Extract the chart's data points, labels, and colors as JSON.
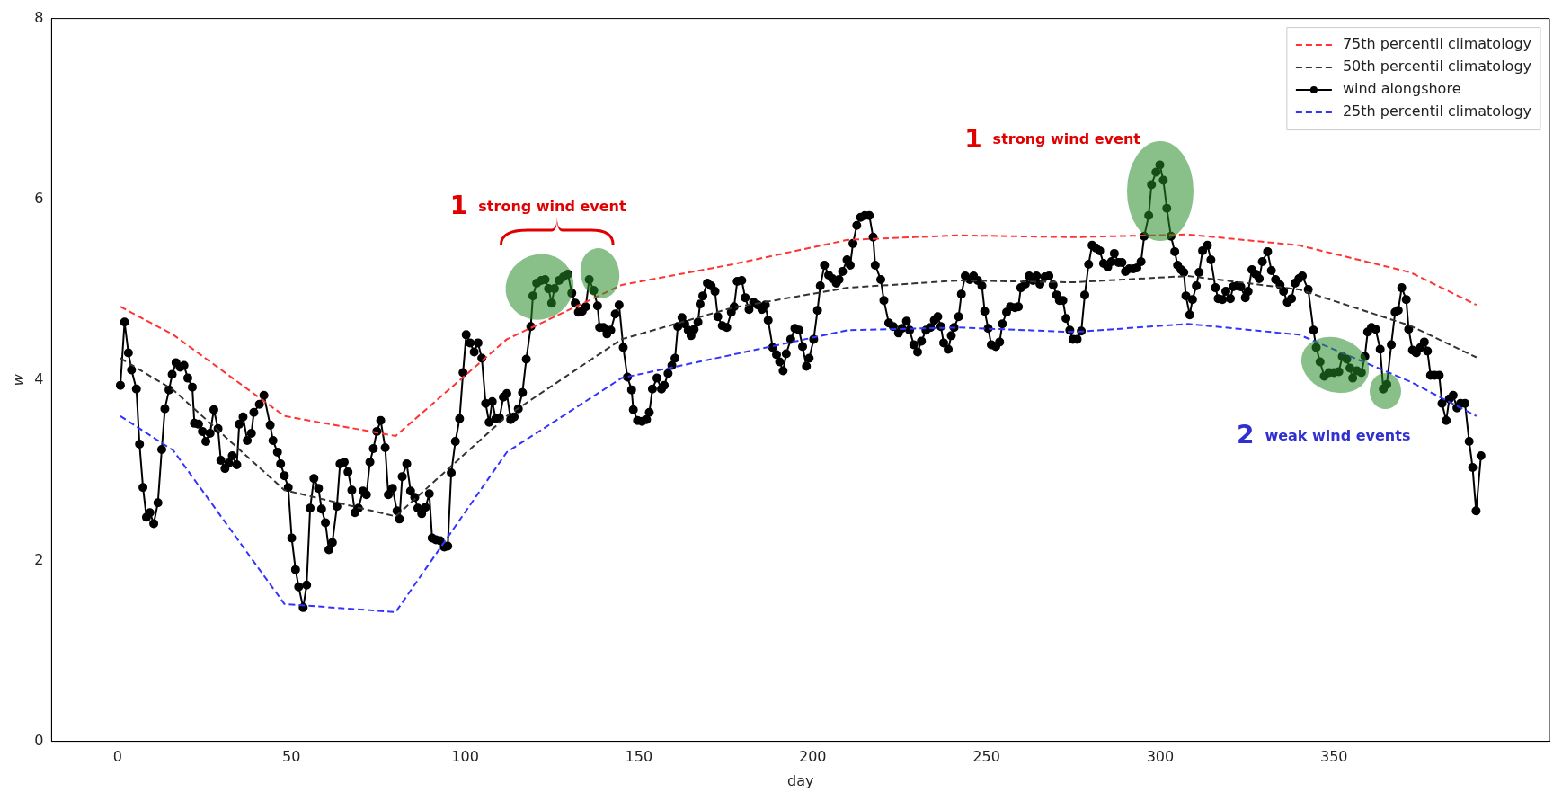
{
  "chart_data": {
    "type": "line",
    "xlabel": "day",
    "ylabel": "w",
    "xlim": [
      -19,
      412
    ],
    "xticks": [
      0,
      50,
      100,
      150,
      200,
      250,
      300,
      350
    ],
    "ylim": [
      0,
      8
    ],
    "yticks": [
      0,
      2,
      4,
      6,
      8
    ],
    "legend": "top right",
    "grid": false,
    "series": [
      {
        "name": "75th percentil climatology",
        "color": "#ff3333",
        "line_style": "dashed",
        "marker": "none",
        "x": [
          0.8,
          16,
          48,
          80,
          112,
          145,
          177,
          210,
          242,
          275,
          308,
          340,
          372,
          391
        ],
        "values": [
          4.81,
          4.5,
          3.6,
          3.38,
          4.45,
          5.05,
          5.28,
          5.55,
          5.6,
          5.58,
          5.61,
          5.49,
          5.19,
          4.83
        ]
      },
      {
        "name": "50th percentil climatology",
        "color": "#333333",
        "line_style": "dashed",
        "marker": "none",
        "x": [
          0.8,
          16,
          48,
          80,
          112,
          145,
          177,
          210,
          242,
          275,
          308,
          340,
          372,
          391
        ],
        "values": [
          4.24,
          3.89,
          2.78,
          2.49,
          3.6,
          4.45,
          4.8,
          5.02,
          5.1,
          5.08,
          5.15,
          5.0,
          4.6,
          4.25
        ]
      },
      {
        "name": "wind alongshore",
        "color": "#000000",
        "line_style": "solid",
        "marker": "circle",
        "x": [
          0.8,
          2.0,
          3.1,
          4.0,
          5.4,
          6.3,
          7.3,
          8.3,
          9.3,
          10.4,
          11.6,
          12.7,
          13.6,
          14.8,
          15.7,
          16.8,
          18.0,
          19.1,
          20.2,
          21.5,
          22.1,
          23.3,
          24.4,
          25.4,
          26.6,
          27.7,
          28.9,
          29.7,
          30.9,
          32.0,
          33.0,
          34.3,
          35.0,
          36.1,
          37.3,
          38.5,
          39.2,
          40.8,
          42.1,
          43.9,
          44.7,
          46.0,
          46.9,
          48.0,
          49.1,
          50.1,
          51.2,
          52.1,
          53.4,
          54.4,
          55.4,
          56.5,
          57.8,
          58.7,
          59.8,
          60.8,
          61.8,
          63.1,
          64.0,
          65.2,
          66.3,
          67.4,
          68.3,
          69.3,
          70.6,
          71.6,
          72.6,
          73.6,
          74.6,
          75.7,
          77.0,
          77.9,
          79.1,
          80.4,
          81.1,
          81.9,
          83.2,
          84.3,
          85.5,
          86.4,
          87.5,
          88.6,
          89.7,
          90.5,
          91.6,
          92.8,
          94.0,
          95.0,
          96.0,
          97.2,
          98.4,
          99.4,
          100.3,
          101.4,
          102.6,
          103.7,
          104.8,
          105.9,
          106.9,
          107.8,
          108.8,
          109.9,
          111.0,
          112.0,
          113.1,
          114.1,
          115.3,
          116.5,
          117.6,
          118.9,
          119.5,
          120.6,
          121.9,
          123.0,
          124.0,
          124.9,
          125.7,
          127.0,
          128.3,
          129.6,
          130.7,
          131.7,
          132.6,
          133.7,
          134.7,
          135.7,
          137.0,
          138.1,
          138.7,
          139.8,
          140.8,
          141.9,
          143.2,
          144.3,
          145.5,
          146.7,
          147.9,
          148.4,
          149.6,
          150.9,
          152.2,
          153.0,
          153.9,
          155.2,
          156.5,
          157.3,
          158.4,
          159.5,
          160.4,
          161.2,
          162.4,
          163.2,
          164.2,
          165.0,
          165.9,
          167.0,
          167.6,
          168.4,
          169.7,
          170.8,
          171.9,
          172.7,
          174.0,
          175.3,
          176.6,
          177.4,
          178.3,
          179.6,
          180.6,
          181.7,
          183.0,
          184.2,
          185.4,
          186.4,
          187.2,
          188.5,
          189.6,
          190.5,
          191.5,
          192.4,
          193.7,
          194.9,
          196.1,
          197.1,
          198.2,
          199.0,
          200.3,
          201.4,
          202.2,
          203.4,
          204.6,
          205.7,
          206.8,
          207.6,
          208.6,
          209.9,
          210.8,
          211.6,
          212.7,
          213.8,
          215.0,
          216.3,
          217.4,
          218.0,
          219.6,
          220.5,
          221.9,
          223.2,
          224.7,
          225.7,
          227.0,
          227.9,
          229.1,
          230.2,
          231.3,
          232.6,
          233.9,
          235.0,
          236.0,
          236.9,
          237.7,
          239.0,
          239.9,
          240.7,
          242.0,
          242.8,
          243.9,
          245.2,
          246.3,
          247.5,
          248.7,
          249.5,
          250.5,
          251.4,
          252.7,
          253.8,
          254.6,
          255.8,
          256.9,
          258.2,
          259.2,
          259.9,
          261.2,
          262.3,
          263.4,
          264.4,
          265.4,
          266.8,
          268.0,
          269.2,
          270.2,
          271.0,
          272.0,
          272.9,
          274.0,
          274.9,
          276.1,
          277.3,
          278.3,
          279.4,
          280.4,
          281.5,
          282.6,
          283.7,
          284.9,
          286.0,
          286.8,
          288.0,
          289.0,
          290.0,
          291.1,
          292.3,
          293.3,
          294.5,
          295.4,
          296.7,
          297.5,
          298.8,
          299.9,
          300.9,
          301.9,
          303.1,
          304.2,
          305.0,
          306.0,
          306.8,
          307.4,
          308.5,
          309.3,
          310.4,
          311.2,
          312.2,
          313.6,
          314.6,
          315.9,
          316.7,
          317.9,
          318.9,
          320.2,
          321.0,
          322.1,
          323.2,
          324.5,
          325.3,
          326.4,
          327.5,
          328.5,
          329.4,
          330.9,
          332.0,
          333.2,
          334.5,
          335.5,
          336.6,
          337.8,
          338.8,
          339.9,
          340.9,
          342.6,
          344.1,
          344.9,
          346.0,
          347.2,
          348.6,
          350.0,
          351.4,
          352.4,
          353.7,
          354.6,
          355.4,
          356.6,
          357.9,
          358.9,
          359.7,
          360.8,
          362.0,
          363.3,
          364.2,
          365.2,
          366.5,
          367.6,
          368.5,
          369.5,
          370.8,
          371.5,
          372.6,
          373.7,
          374.9,
          376.0,
          376.9,
          377.8,
          379.0,
          380.3,
          381.1,
          382.3,
          383.2,
          384.3,
          385.4,
          386.4,
          387.7,
          388.9,
          389.9,
          390.9,
          392.3
        ],
        "values": [
          3.94,
          4.64,
          4.3,
          4.11,
          3.9,
          3.29,
          2.81,
          2.48,
          2.53,
          2.41,
          2.64,
          3.23,
          3.68,
          3.89,
          4.06,
          4.19,
          4.14,
          4.16,
          4.02,
          3.92,
          3.52,
          3.51,
          3.43,
          3.32,
          3.41,
          3.67,
          3.46,
          3.11,
          3.02,
          3.08,
          3.16,
          3.06,
          3.51,
          3.59,
          3.33,
          3.41,
          3.64,
          3.73,
          3.83,
          3.5,
          3.33,
          3.2,
          3.07,
          2.94,
          2.81,
          2.25,
          1.9,
          1.71,
          1.48,
          1.73,
          2.58,
          2.91,
          2.8,
          2.57,
          2.42,
          2.12,
          2.2,
          2.6,
          3.07,
          3.09,
          2.98,
          2.78,
          2.53,
          2.58,
          2.77,
          2.73,
          3.09,
          3.24,
          3.43,
          3.55,
          3.25,
          2.73,
          2.8,
          2.55,
          2.46,
          2.93,
          3.07,
          2.77,
          2.7,
          2.58,
          2.52,
          2.59,
          2.74,
          2.25,
          2.23,
          2.22,
          2.15,
          2.16,
          2.97,
          3.32,
          3.57,
          4.08,
          4.5,
          4.41,
          4.31,
          4.41,
          4.24,
          3.74,
          3.53,
          3.76,
          3.57,
          3.58,
          3.81,
          3.85,
          3.56,
          3.59,
          3.68,
          3.86,
          4.23,
          4.59,
          4.93,
          5.07,
          5.1,
          5.11,
          5.01,
          4.85,
          5.01,
          5.1,
          5.14,
          5.17,
          4.96,
          4.85,
          4.75,
          4.76,
          4.81,
          5.11,
          4.99,
          4.82,
          4.58,
          4.58,
          4.51,
          4.55,
          4.73,
          4.83,
          4.36,
          4.03,
          3.89,
          3.67,
          3.55,
          3.54,
          3.56,
          3.64,
          3.9,
          4.02,
          3.9,
          3.94,
          4.07,
          4.16,
          4.24,
          4.59,
          4.69,
          4.62,
          4.55,
          4.49,
          4.56,
          4.64,
          4.84,
          4.93,
          5.07,
          5.04,
          4.98,
          4.7,
          4.6,
          4.58,
          4.75,
          4.81,
          5.09,
          5.1,
          4.91,
          4.78,
          4.86,
          4.83,
          4.78,
          4.83,
          4.66,
          4.36,
          4.28,
          4.2,
          4.1,
          4.29,
          4.45,
          4.57,
          4.55,
          4.37,
          4.15,
          4.24,
          4.45,
          4.77,
          5.04,
          5.27,
          5.16,
          5.12,
          5.07,
          5.11,
          5.2,
          5.33,
          5.27,
          5.51,
          5.71,
          5.8,
          5.82,
          5.82,
          5.58,
          5.27,
          5.11,
          4.88,
          4.63,
          4.59,
          4.52,
          4.57,
          4.65,
          4.55,
          4.39,
          4.31,
          4.43,
          4.55,
          4.58,
          4.66,
          4.7,
          4.59,
          4.41,
          4.34,
          4.49,
          4.58,
          4.7,
          4.95,
          5.15,
          5.11,
          5.15,
          5.1,
          5.04,
          4.76,
          4.57,
          4.39,
          4.37,
          4.42,
          4.62,
          4.75,
          4.81,
          4.8,
          4.81,
          5.02,
          5.06,
          5.15,
          5.1,
          5.15,
          5.06,
          5.14,
          5.15,
          5.05,
          4.94,
          4.88,
          4.88,
          4.68,
          4.55,
          4.45,
          4.45,
          4.54,
          4.94,
          5.28,
          5.49,
          5.46,
          5.43,
          5.29,
          5.25,
          5.31,
          5.4,
          5.3,
          5.3,
          5.2,
          5.23,
          5.23,
          5.24,
          5.31,
          5.59,
          5.82,
          6.16,
          6.3,
          6.38,
          6.21,
          5.9,
          5.59,
          5.42,
          5.27,
          5.22,
          5.19,
          4.93,
          4.72,
          4.89,
          5.04,
          5.19,
          5.43,
          5.49,
          5.33,
          5.02,
          4.9,
          4.89,
          4.98,
          4.9,
          5.03,
          5.04,
          5.03,
          4.91,
          4.98,
          5.22,
          5.17,
          5.12,
          5.31,
          5.42,
          5.21,
          5.11,
          5.05,
          4.98,
          4.86,
          4.9,
          5.07,
          5.12,
          5.15,
          5.0,
          4.55,
          4.36,
          4.2,
          4.04,
          4.08,
          4.08,
          4.09,
          4.26,
          4.23,
          4.13,
          4.02,
          4.1,
          4.08,
          4.26,
          4.53,
          4.58,
          4.56,
          4.34,
          3.9,
          3.95,
          4.39,
          4.75,
          4.77,
          5.02,
          4.89,
          4.56,
          4.33,
          4.3,
          4.36,
          4.42,
          4.32,
          4.05,
          4.05,
          4.05,
          3.74,
          3.55,
          3.79,
          3.83,
          3.69,
          3.74,
          3.74,
          3.32,
          3.03,
          2.55,
          3.16
        ]
      },
      {
        "name": "25th percentil climatology",
        "color": "#3333ff",
        "line_style": "dashed",
        "marker": "none",
        "x": [
          0.8,
          16,
          48,
          80,
          112,
          145,
          177,
          210,
          242,
          275,
          308,
          340,
          372,
          391
        ],
        "values": [
          3.6,
          3.22,
          1.52,
          1.43,
          3.2,
          4.02,
          4.28,
          4.55,
          4.58,
          4.53,
          4.62,
          4.5,
          3.98,
          3.6
        ]
      }
    ],
    "annotations": [
      "1 strong wind event",
      "1 strong wind event",
      "2 weak wind events"
    ]
  }
}
